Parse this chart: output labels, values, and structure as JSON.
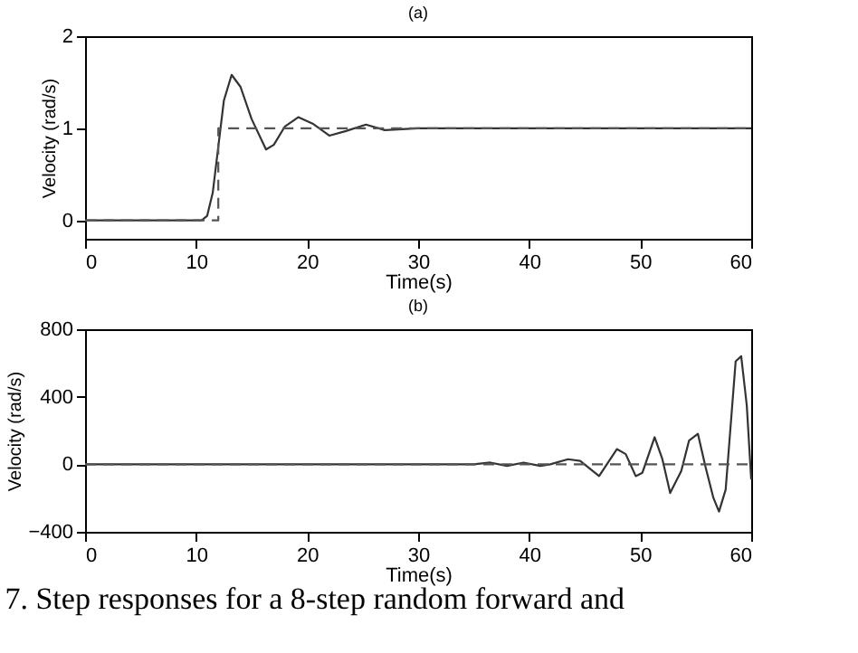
{
  "chart_data": [
    {
      "type": "line",
      "title": "(a)",
      "xlabel": "Time(s)",
      "ylabel": "Velocity (rad/s)",
      "xlim": [
        0,
        60
      ],
      "xticks": [
        0,
        10,
        20,
        30,
        40,
        50,
        60
      ],
      "ylim": [
        -0.2,
        2
      ],
      "yticks": [
        0,
        1,
        2
      ],
      "grid": false,
      "marker": "none",
      "series": [
        {
          "color": "#333333",
          "line_style": "solid",
          "x": [
            0,
            10.5,
            11,
            11.5,
            12,
            12.5,
            13.2,
            14,
            15,
            16.3,
            17,
            18,
            19.2,
            20.5,
            22,
            23.5,
            25.3,
            27,
            30,
            60
          ],
          "values": [
            0,
            0,
            0.05,
            0.3,
            0.8,
            1.3,
            1.58,
            1.45,
            1.1,
            0.77,
            0.82,
            1.02,
            1.12,
            1.05,
            0.92,
            0.97,
            1.04,
            0.98,
            1.0,
            1.0
          ]
        },
        {
          "color": "#555555",
          "line_style": "dashed",
          "x": [
            0,
            12,
            12,
            60
          ],
          "values": [
            0,
            0,
            1,
            1
          ]
        }
      ]
    },
    {
      "type": "line",
      "title": "(b)",
      "xlabel": "Time(s)",
      "ylabel": "Velocity (rad/s)",
      "xlim": [
        0,
        60
      ],
      "xticks": [
        0,
        10,
        20,
        30,
        40,
        50,
        60
      ],
      "ylim": [
        -400,
        800
      ],
      "yticks": [
        -400,
        0,
        400,
        800
      ],
      "grid": false,
      "marker": "none",
      "annotations": [
        "7. Step responses for a 8-step random forward and"
      ],
      "series": [
        {
          "color": "#333333",
          "line_style": "solid",
          "x": [
            0,
            35,
            36.5,
            38,
            39.5,
            41,
            41.9,
            43.5,
            44.6,
            46.3,
            47.9,
            48.7,
            49.6,
            50.2,
            51.3,
            52.0,
            52.7,
            53.7,
            54.4,
            55.2,
            55.9,
            56.6,
            57.1,
            57.7,
            58.6,
            59.1,
            59.6,
            60
          ],
          "values": [
            0,
            0,
            10,
            -10,
            10,
            -10,
            0,
            30,
            20,
            -70,
            90,
            60,
            -70,
            -50,
            160,
            30,
            -170,
            -40,
            140,
            180,
            -20,
            -200,
            -280,
            -150,
            610,
            640,
            350,
            -90
          ]
        },
        {
          "color": "#555555",
          "line_style": "dashed",
          "x": [
            0,
            60
          ],
          "values": [
            0,
            0
          ]
        }
      ]
    }
  ]
}
